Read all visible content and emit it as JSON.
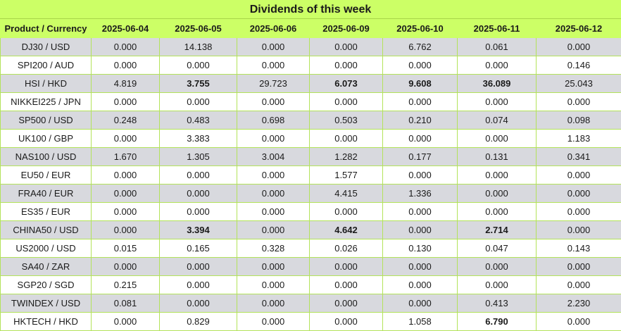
{
  "title": "Dividends of this week",
  "header": [
    "Product / Currency",
    "2025-06-04",
    "2025-06-05",
    "2025-06-06",
    "2025-06-09",
    "2025-06-10",
    "2025-06-11",
    "2025-06-12"
  ],
  "rows": [
    {
      "product": "DJ30 / USD",
      "values": [
        "0.000",
        "14.138",
        "0.000",
        "0.000",
        "6.762",
        "0.061",
        "0.000"
      ],
      "bold": []
    },
    {
      "product": "SPI200 / AUD",
      "values": [
        "0.000",
        "0.000",
        "0.000",
        "0.000",
        "0.000",
        "0.000",
        "0.146"
      ],
      "bold": []
    },
    {
      "product": "HSI / HKD",
      "values": [
        "4.819",
        "3.755",
        "29.723",
        "6.073",
        "9.608",
        "36.089",
        "25.043"
      ],
      "bold": [
        1,
        3,
        4,
        5
      ]
    },
    {
      "product": "NIKKEI225 / JPN",
      "values": [
        "0.000",
        "0.000",
        "0.000",
        "0.000",
        "0.000",
        "0.000",
        "0.000"
      ],
      "bold": []
    },
    {
      "product": "SP500 / USD",
      "values": [
        "0.248",
        "0.483",
        "0.698",
        "0.503",
        "0.210",
        "0.074",
        "0.098"
      ],
      "bold": []
    },
    {
      "product": "UK100 / GBP",
      "values": [
        "0.000",
        "3.383",
        "0.000",
        "0.000",
        "0.000",
        "0.000",
        "1.183"
      ],
      "bold": []
    },
    {
      "product": "NAS100 / USD",
      "values": [
        "1.670",
        "1.305",
        "3.004",
        "1.282",
        "0.177",
        "0.131",
        "0.341"
      ],
      "bold": []
    },
    {
      "product": "EU50 / EUR",
      "values": [
        "0.000",
        "0.000",
        "0.000",
        "1.577",
        "0.000",
        "0.000",
        "0.000"
      ],
      "bold": []
    },
    {
      "product": "FRA40 / EUR",
      "values": [
        "0.000",
        "0.000",
        "0.000",
        "4.415",
        "1.336",
        "0.000",
        "0.000"
      ],
      "bold": []
    },
    {
      "product": "ES35 / EUR",
      "values": [
        "0.000",
        "0.000",
        "0.000",
        "0.000",
        "0.000",
        "0.000",
        "0.000"
      ],
      "bold": []
    },
    {
      "product": "CHINA50 / USD",
      "values": [
        "0.000",
        "3.394",
        "0.000",
        "4.642",
        "0.000",
        "2.714",
        "0.000"
      ],
      "bold": [
        1,
        3,
        5
      ]
    },
    {
      "product": "US2000 / USD",
      "values": [
        "0.015",
        "0.165",
        "0.328",
        "0.026",
        "0.130",
        "0.047",
        "0.143"
      ],
      "bold": []
    },
    {
      "product": "SA40 / ZAR",
      "values": [
        "0.000",
        "0.000",
        "0.000",
        "0.000",
        "0.000",
        "0.000",
        "0.000"
      ],
      "bold": []
    },
    {
      "product": "SGP20 / SGD",
      "values": [
        "0.215",
        "0.000",
        "0.000",
        "0.000",
        "0.000",
        "0.000",
        "0.000"
      ],
      "bold": []
    },
    {
      "product": "TWINDEX / USD",
      "values": [
        "0.081",
        "0.000",
        "0.000",
        "0.000",
        "0.000",
        "0.413",
        "2.230"
      ],
      "bold": []
    },
    {
      "product": "HKTECH / HKD",
      "values": [
        "0.000",
        "0.829",
        "0.000",
        "0.000",
        "1.058",
        "6.790",
        "0.000"
      ],
      "bold": [
        5
      ]
    }
  ],
  "colors": {
    "header_bg": "#ccff66",
    "row_shaded": "#d8d9de",
    "row_plain": "#ffffff",
    "grid": "#b3e35a"
  }
}
